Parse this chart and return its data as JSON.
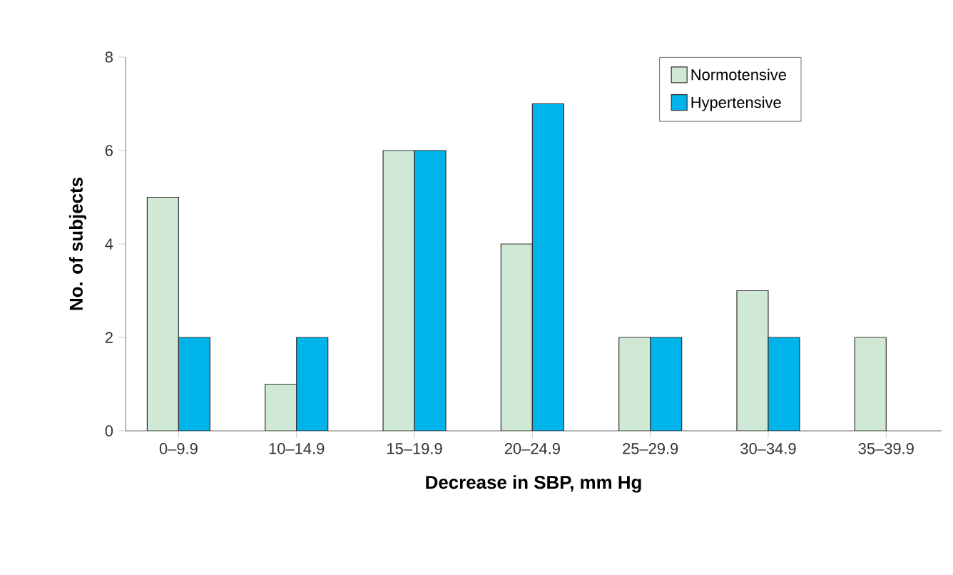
{
  "chart_data": {
    "type": "bar",
    "xlabel": "Decrease in SBP, mm Hg",
    "ylabel": "No. of subjects",
    "categories": [
      "0–9.9",
      "10–14.9",
      "15–19.9",
      "20–24.9",
      "25–29.9",
      "30–34.9",
      "35–39.9"
    ],
    "series": [
      {
        "name": "Normotensive",
        "color": "#d0e8d6",
        "values": [
          5,
          1,
          6,
          4,
          2,
          3,
          2
        ]
      },
      {
        "name": "Hypertensive",
        "color": "#00b4eb",
        "values": [
          2,
          2,
          6,
          7,
          2,
          2,
          null
        ]
      }
    ],
    "ylim": [
      0,
      8
    ],
    "yticks": [
      0,
      2,
      4,
      6,
      8
    ],
    "legend": "top right",
    "grid": false
  }
}
